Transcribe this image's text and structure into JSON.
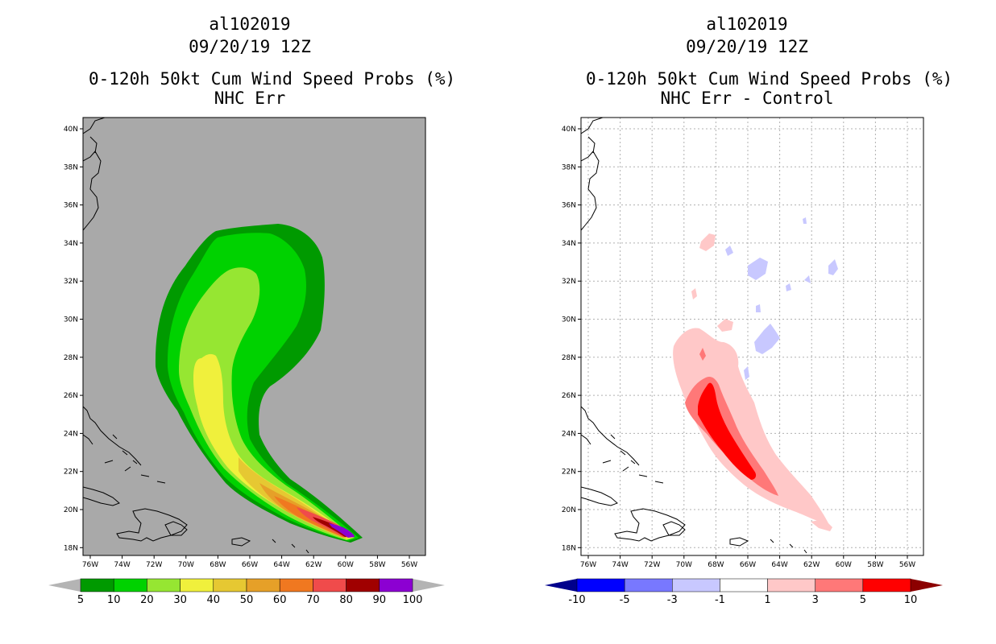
{
  "left": {
    "storm": "al102019",
    "datetime": "09/20/19 12Z",
    "product": "0-120h 50kt Cum Wind Speed Probs (%)",
    "subtitle": "NHC Err"
  },
  "right": {
    "storm": "al102019",
    "datetime": "09/20/19 12Z",
    "product": "0-120h 50kt Cum Wind Speed Probs (%)",
    "subtitle": "NHC Err - Control"
  },
  "axes": {
    "lat_labels": [
      "40N",
      "38N",
      "36N",
      "34N",
      "32N",
      "30N",
      "28N",
      "26N",
      "24N",
      "22N",
      "20N",
      "18N"
    ],
    "lon_labels": [
      "76W",
      "74W",
      "72W",
      "70W",
      "68W",
      "66W",
      "64W",
      "62W",
      "60W",
      "58W",
      "56W"
    ]
  },
  "colorbar_left": {
    "labels": [
      "5",
      "10",
      "20",
      "30",
      "40",
      "50",
      "60",
      "70",
      "80",
      "90",
      "100"
    ],
    "colors": [
      "#009a00",
      "#00d200",
      "#96e632",
      "#f0f03c",
      "#e6c832",
      "#e6a028",
      "#f07820",
      "#f04b4b",
      "#a00000",
      "#8c00d2"
    ],
    "under_color": "#b4b4b4",
    "over_color": "#b4b4b4"
  },
  "colorbar_right": {
    "labels": [
      "-10",
      "-5",
      "-3",
      "-1",
      "1",
      "3",
      "5",
      "10"
    ],
    "colors": [
      "#0000ff",
      "#7878ff",
      "#c8c8ff",
      "#ffffff",
      "#ffc8c8",
      "#ff7878",
      "#ff0000"
    ],
    "under_color": "#00008c",
    "over_color": "#8c0000"
  },
  "map_colors": {
    "background_left": "#a9a9a9",
    "background_right": "#ffffff"
  }
}
